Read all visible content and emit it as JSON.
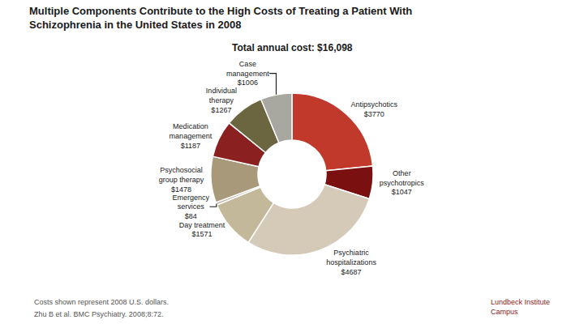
{
  "chart_data": {
    "type": "donut",
    "title": "Multiple Components Contribute to the High Costs of Treating a Patient With\nSchizophrenia in the United States in 2008",
    "subtitle": "Total annual cost: $16,098",
    "categories": [
      "Antipsychotics",
      "Other\npsychotropics",
      "Psychiatric\nhospitalizations",
      "Day treatment",
      "Emergency\nservices",
      "Psychosocial\ngroup therapy",
      "Medication\nmanagement",
      "Individual\ntherapy",
      "Case\nmanagement"
    ],
    "values": [
      3770,
      1047,
      4687,
      1571,
      84,
      1478,
      1187,
      1267,
      1006
    ],
    "value_labels": [
      "$3770",
      "$1047",
      "$4687",
      "$1571",
      "$84",
      "$1478",
      "$1187",
      "$1267",
      "$1006"
    ],
    "colors": [
      "#C0392B",
      "#7B1010",
      "#D5C9B8",
      "#C4B89A",
      "#B8AFA0",
      "#A8997A",
      "#8B2020",
      "#6B6540",
      "#A8A8A0"
    ],
    "data_labels": true,
    "annotations": [
      "Costs shown represent 2008 U.S. dollars.",
      "Zhu B et al. BMC Psychiatry. 2008;8:72.",
      "Lundbeck Institute\nCampus"
    ]
  }
}
